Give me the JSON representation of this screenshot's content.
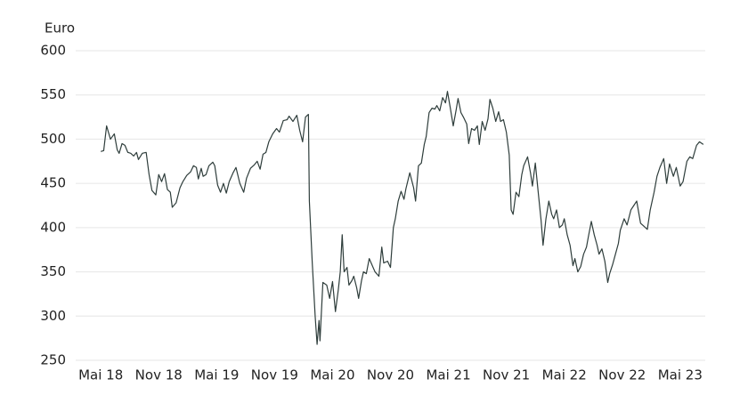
{
  "chart_data": {
    "type": "line",
    "y_label": "Euro",
    "x": [
      0,
      0.3,
      0.6,
      1.0,
      1.4,
      1.7,
      1.9,
      2.2,
      2.5,
      2.8,
      3.1,
      3.4,
      3.7,
      3.9,
      4.3,
      4.7,
      5.0,
      5.3,
      5.7,
      6.0,
      6.3,
      6.6,
      6.9,
      7.2,
      7.4,
      7.8,
      8.2,
      8.5,
      8.9,
      9.3,
      9.6,
      9.9,
      10.1,
      10.4,
      10.6,
      10.9,
      11.2,
      11.6,
      11.8,
      12.1,
      12.4,
      12.7,
      13.0,
      13.3,
      13.7,
      14.0,
      14.4,
      14.8,
      15.1,
      15.5,
      15.9,
      16.2,
      16.5,
      16.8,
      17.1,
      17.4,
      17.8,
      18.2,
      18.5,
      18.9,
      19.3,
      19.5,
      19.9,
      20.3,
      20.6,
      20.9,
      21.2,
      21.5,
      21.6,
      21.9,
      22.2,
      22.4,
      22.6,
      22.7,
      23.0,
      23.4,
      23.7,
      24.0,
      24.3,
      24.6,
      24.8,
      25.0,
      25.2,
      25.5,
      25.7,
      26.0,
      26.2,
      26.5,
      26.7,
      27.0,
      27.2,
      27.5,
      27.8,
      28.2,
      28.4,
      28.8,
      29.1,
      29.3,
      29.7,
      30.0,
      30.3,
      30.5,
      30.8,
      31.1,
      31.4,
      31.6,
      32.0,
      32.4,
      32.6,
      32.9,
      33.2,
      33.5,
      33.7,
      34.0,
      34.3,
      34.6,
      34.8,
      35.1,
      35.4,
      35.7,
      35.9,
      36.2,
      36.5,
      36.8,
      37.0,
      37.3,
      37.6,
      37.9,
      38.1,
      38.4,
      38.7,
      39.0,
      39.2,
      39.5,
      39.8,
      40.1,
      40.3,
      40.6,
      40.9,
      41.2,
      41.4,
      41.7,
      42.0,
      42.3,
      42.5,
      42.7,
      43.0,
      43.3,
      43.6,
      43.8,
      44.2,
      44.5,
      44.7,
      45.0,
      45.3,
      45.6,
      45.8,
      46.1,
      46.4,
      46.7,
      46.9,
      47.2,
      47.5,
      47.8,
      48.0,
      48.3,
      48.6,
      48.9,
      49.1,
      49.4,
      49.7,
      50.0,
      50.3,
      50.5,
      50.8,
      51.1,
      51.4,
      51.6,
      51.9,
      52.2,
      52.5,
      52.7,
      53.0,
      53.3,
      53.6,
      53.8,
      54.2,
      54.5,
      54.9,
      55.2,
      55.5,
      55.9,
      56.2,
      56.6,
      56.9,
      57.3,
      57.6,
      57.9,
      58.3,
      58.6,
      58.9,
      59.3,
      59.6,
      60.0,
      60.3,
      60.7,
      61.0,
      61.3,
      61.7,
      62.0,
      62.4
    ],
    "series": [
      {
        "color": "#2e3d3b",
        "values": [
          486,
          487,
          515,
          500,
          506,
          488,
          484,
          495,
          493,
          485,
          484,
          481,
          485,
          477,
          484,
          485,
          460,
          442,
          437,
          460,
          452,
          461,
          443,
          440,
          423,
          428,
          445,
          452,
          459,
          463,
          470,
          468,
          455,
          467,
          458,
          460,
          470,
          474,
          470,
          448,
          440,
          450,
          439,
          452,
          462,
          468,
          450,
          440,
          456,
          467,
          471,
          475,
          466,
          483,
          485,
          497,
          506,
          512,
          508,
          521,
          522,
          526,
          520,
          527,
          510,
          497,
          525,
          528,
          430,
          360,
          300,
          268,
          295,
          272,
          338,
          335,
          320,
          339,
          305,
          330,
          350,
          392,
          350,
          355,
          335,
          340,
          345,
          332,
          320,
          340,
          350,
          348,
          365,
          355,
          350,
          345,
          378,
          360,
          362,
          355,
          400,
          410,
          430,
          441,
          432,
          444,
          462,
          445,
          430,
          470,
          473,
          494,
          503,
          530,
          535,
          534,
          538,
          532,
          547,
          541,
          554,
          535,
          515,
          533,
          546,
          530,
          524,
          517,
          495,
          512,
          510,
          515,
          494,
          520,
          510,
          523,
          545,
          535,
          520,
          531,
          520,
          522,
          508,
          482,
          420,
          415,
          440,
          435,
          460,
          470,
          480,
          462,
          447,
          473,
          440,
          408,
          380,
          410,
          430,
          415,
          410,
          420,
          400,
          403,
          410,
          392,
          380,
          357,
          365,
          350,
          356,
          370,
          378,
          390,
          407,
          392,
          380,
          370,
          376,
          362,
          338,
          348,
          358,
          370,
          382,
          397,
          410,
          403,
          420,
          425,
          430,
          405,
          402,
          398,
          420,
          440,
          458,
          468,
          478,
          450,
          472,
          458,
          468,
          447,
          452,
          475,
          480,
          478,
          493,
          497,
          494
        ]
      }
    ],
    "xlim": [
      -2.6,
      62.6
    ],
    "xticks": [
      {
        "value": 0,
        "label": "Mai 18"
      },
      {
        "value": 6,
        "label": "Nov 18"
      },
      {
        "value": 12,
        "label": "Mai 19"
      },
      {
        "value": 18,
        "label": "Nov 19"
      },
      {
        "value": 24,
        "label": "Mai 20"
      },
      {
        "value": 30,
        "label": "Nov 20"
      },
      {
        "value": 36,
        "label": "Mai 21"
      },
      {
        "value": 42,
        "label": "Nov 21"
      },
      {
        "value": 48,
        "label": "Mai 22"
      },
      {
        "value": 54,
        "label": "Nov 22"
      },
      {
        "value": 60,
        "label": "Mai 23"
      }
    ],
    "ylim": [
      250,
      600
    ],
    "yticks": [
      250,
      300,
      350,
      400,
      450,
      500,
      550,
      600
    ],
    "grid": true
  }
}
